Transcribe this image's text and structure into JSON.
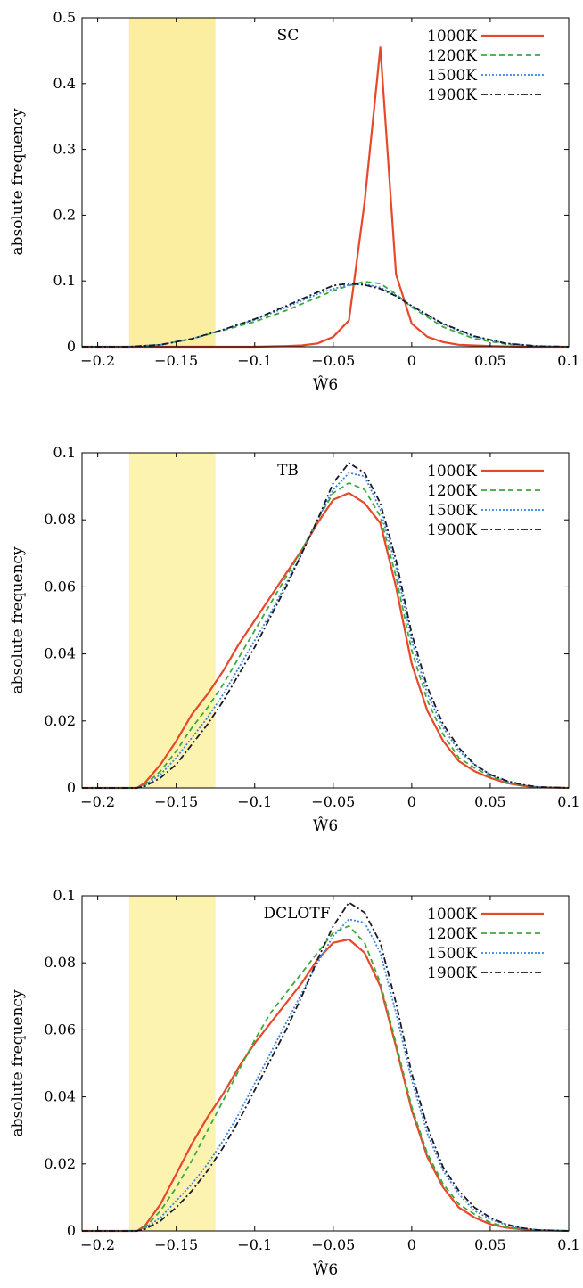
{
  "chart_data": [
    {
      "type": "line",
      "title": "SC",
      "xlabel": "Ŵ6",
      "ylabel": "absolute frequency",
      "xlim": [
        -0.21,
        0.1
      ],
      "ylim": [
        0,
        0.5
      ],
      "xticks": [
        -0.2,
        -0.15,
        -0.1,
        -0.05,
        0,
        0.05,
        0.1
      ],
      "xtick_labels": [
        "−0.2",
        "−0.15",
        "−0.1",
        "−0.05",
        "0",
        "0.05",
        "0.1"
      ],
      "yticks": [
        0,
        0.1,
        0.2,
        0.3,
        0.4,
        0.5
      ],
      "ytick_labels": [
        "0",
        "0.1",
        "0.2",
        "0.3",
        "0.4",
        "0.5"
      ],
      "highlight_band": {
        "x0": -0.18,
        "x1": -0.125,
        "color": "#fbeea0"
      },
      "legend_position": "top-right",
      "grid": false,
      "series": [
        {
          "name": "1000K",
          "color": "#e8482a",
          "dash": "",
          "x": [
            -0.21,
            -0.15,
            -0.1,
            -0.08,
            -0.07,
            -0.06,
            -0.05,
            -0.04,
            -0.03,
            -0.02,
            -0.01,
            0.0,
            0.01,
            0.02,
            0.03,
            0.05,
            0.07,
            0.1
          ],
          "y": [
            0,
            0,
            0,
            0.001,
            0.002,
            0.005,
            0.015,
            0.04,
            0.22,
            0.455,
            0.11,
            0.035,
            0.015,
            0.007,
            0.003,
            0.001,
            0,
            0
          ]
        },
        {
          "name": "1200K",
          "color": "#3caa3c",
          "dash": "6,4",
          "x": [
            -0.21,
            -0.18,
            -0.16,
            -0.14,
            -0.12,
            -0.1,
            -0.08,
            -0.06,
            -0.05,
            -0.04,
            -0.03,
            -0.02,
            -0.01,
            0.0,
            0.02,
            0.04,
            0.06,
            0.08,
            0.1
          ],
          "y": [
            0,
            0,
            0.003,
            0.012,
            0.025,
            0.038,
            0.055,
            0.075,
            0.085,
            0.093,
            0.099,
            0.096,
            0.08,
            0.06,
            0.03,
            0.012,
            0.004,
            0.001,
            0
          ]
        },
        {
          "name": "1500K",
          "color": "#3b82d9",
          "dash": "2,2",
          "x": [
            -0.21,
            -0.18,
            -0.16,
            -0.14,
            -0.12,
            -0.1,
            -0.08,
            -0.06,
            -0.05,
            -0.04,
            -0.03,
            -0.02,
            -0.01,
            0.0,
            0.02,
            0.04,
            0.06,
            0.08,
            0.1
          ],
          "y": [
            0,
            0,
            0.003,
            0.012,
            0.026,
            0.041,
            0.06,
            0.08,
            0.088,
            0.094,
            0.095,
            0.09,
            0.078,
            0.062,
            0.034,
            0.015,
            0.005,
            0.001,
            0
          ]
        },
        {
          "name": "1900K",
          "color": "#1a1a2e",
          "dash": "7,3,2,3",
          "x": [
            -0.21,
            -0.18,
            -0.16,
            -0.14,
            -0.12,
            -0.1,
            -0.08,
            -0.06,
            -0.05,
            -0.04,
            -0.03,
            -0.02,
            -0.01,
            0.0,
            0.02,
            0.04,
            0.06,
            0.08,
            0.1
          ],
          "y": [
            0,
            0,
            0.003,
            0.012,
            0.026,
            0.042,
            0.062,
            0.083,
            0.093,
            0.096,
            0.094,
            0.088,
            0.077,
            0.062,
            0.035,
            0.016,
            0.005,
            0.001,
            0
          ]
        }
      ]
    },
    {
      "type": "line",
      "title": "TB",
      "xlabel": "Ŵ6",
      "ylabel": "absolute frequency",
      "xlim": [
        -0.21,
        0.1
      ],
      "ylim": [
        0,
        0.1
      ],
      "xticks": [
        -0.2,
        -0.15,
        -0.1,
        -0.05,
        0,
        0.05,
        0.1
      ],
      "xtick_labels": [
        "−0.2",
        "−0.15",
        "−0.1",
        "−0.05",
        "0",
        "0.05",
        "0.1"
      ],
      "yticks": [
        0,
        0.02,
        0.04,
        0.06,
        0.08,
        0.1
      ],
      "ytick_labels": [
        "0",
        "0.02",
        "0.04",
        "0.06",
        "0.08",
        "0.1"
      ],
      "highlight_band": {
        "x0": -0.18,
        "x1": -0.125,
        "color": "#fdf3b0"
      },
      "legend_position": "top-right",
      "grid": false,
      "series": [
        {
          "name": "1000K",
          "color": "#e8482a",
          "dash": "",
          "x": [
            -0.21,
            -0.175,
            -0.17,
            -0.16,
            -0.15,
            -0.14,
            -0.13,
            -0.12,
            -0.11,
            -0.1,
            -0.09,
            -0.08,
            -0.07,
            -0.06,
            -0.05,
            -0.04,
            -0.03,
            -0.02,
            -0.01,
            0.0,
            0.01,
            0.02,
            0.03,
            0.04,
            0.05,
            0.06,
            0.07,
            0.08,
            0.1
          ],
          "y": [
            0,
            0,
            0.0015,
            0.007,
            0.014,
            0.022,
            0.028,
            0.035,
            0.043,
            0.05,
            0.057,
            0.064,
            0.071,
            0.079,
            0.086,
            0.088,
            0.085,
            0.079,
            0.06,
            0.037,
            0.023,
            0.014,
            0.008,
            0.005,
            0.003,
            0.0015,
            0.0007,
            0.0002,
            0
          ]
        },
        {
          "name": "1200K",
          "color": "#3caa3c",
          "dash": "6,4",
          "x": [
            -0.21,
            -0.175,
            -0.17,
            -0.16,
            -0.15,
            -0.14,
            -0.13,
            -0.12,
            -0.11,
            -0.1,
            -0.09,
            -0.08,
            -0.07,
            -0.06,
            -0.05,
            -0.04,
            -0.03,
            -0.02,
            -0.01,
            0.0,
            0.01,
            0.02,
            0.03,
            0.04,
            0.05,
            0.06,
            0.07,
            0.08,
            0.1
          ],
          "y": [
            0,
            0,
            0.001,
            0.005,
            0.011,
            0.018,
            0.024,
            0.031,
            0.039,
            0.047,
            0.055,
            0.063,
            0.071,
            0.08,
            0.088,
            0.091,
            0.089,
            0.081,
            0.063,
            0.041,
            0.026,
            0.016,
            0.009,
            0.006,
            0.0035,
            0.0018,
            0.0008,
            0.0002,
            0
          ]
        },
        {
          "name": "1500K",
          "color": "#3b82d9",
          "dash": "2,2",
          "x": [
            -0.21,
            -0.175,
            -0.17,
            -0.16,
            -0.15,
            -0.14,
            -0.13,
            -0.12,
            -0.11,
            -0.1,
            -0.09,
            -0.08,
            -0.07,
            -0.06,
            -0.05,
            -0.04,
            -0.03,
            -0.02,
            -0.01,
            0.0,
            0.01,
            0.02,
            0.03,
            0.04,
            0.05,
            0.06,
            0.07,
            0.08,
            0.1
          ],
          "y": [
            0,
            0,
            0.0008,
            0.004,
            0.009,
            0.015,
            0.021,
            0.028,
            0.036,
            0.044,
            0.052,
            0.061,
            0.07,
            0.08,
            0.089,
            0.094,
            0.093,
            0.083,
            0.066,
            0.044,
            0.028,
            0.018,
            0.011,
            0.007,
            0.004,
            0.002,
            0.0009,
            0.0003,
            0
          ]
        },
        {
          "name": "1900K",
          "color": "#1a1a2e",
          "dash": "7,3,2,3",
          "x": [
            -0.21,
            -0.175,
            -0.17,
            -0.16,
            -0.15,
            -0.14,
            -0.13,
            -0.12,
            -0.11,
            -0.1,
            -0.09,
            -0.08,
            -0.07,
            -0.06,
            -0.05,
            -0.04,
            -0.03,
            -0.02,
            -0.01,
            0.0,
            0.01,
            0.02,
            0.03,
            0.04,
            0.05,
            0.06,
            0.07,
            0.08,
            0.1
          ],
          "y": [
            0,
            0,
            0.0005,
            0.003,
            0.007,
            0.013,
            0.019,
            0.026,
            0.034,
            0.042,
            0.051,
            0.06,
            0.07,
            0.08,
            0.091,
            0.097,
            0.094,
            0.085,
            0.068,
            0.046,
            0.03,
            0.019,
            0.012,
            0.007,
            0.004,
            0.0022,
            0.001,
            0.0003,
            0
          ]
        }
      ]
    },
    {
      "type": "line",
      "title": "DCLOTF",
      "xlabel": "Ŵ6",
      "ylabel": "absolute frequency",
      "xlim": [
        -0.21,
        0.1
      ],
      "ylim": [
        0,
        0.1
      ],
      "xticks": [
        -0.2,
        -0.15,
        -0.1,
        -0.05,
        0,
        0.05,
        0.1
      ],
      "xtick_labels": [
        "−0.2",
        "−0.15",
        "−0.1",
        "−0.05",
        "0",
        "0.05",
        "0.1"
      ],
      "yticks": [
        0,
        0.02,
        0.04,
        0.06,
        0.08,
        0.1
      ],
      "ytick_labels": [
        "0",
        "0.02",
        "0.04",
        "0.06",
        "0.08",
        "0.1"
      ],
      "highlight_band": {
        "x0": -0.18,
        "x1": -0.125,
        "color": "#fdf3b0"
      },
      "legend_position": "top-right",
      "grid": false,
      "series": [
        {
          "name": "1000K",
          "color": "#e8482a",
          "dash": "",
          "x": [
            -0.21,
            -0.175,
            -0.17,
            -0.16,
            -0.15,
            -0.14,
            -0.13,
            -0.12,
            -0.11,
            -0.1,
            -0.09,
            -0.08,
            -0.07,
            -0.06,
            -0.05,
            -0.04,
            -0.03,
            -0.02,
            -0.01,
            0.0,
            0.01,
            0.02,
            0.03,
            0.04,
            0.05,
            0.06,
            0.07,
            0.08,
            0.1
          ],
          "y": [
            0,
            0,
            0.0015,
            0.008,
            0.017,
            0.026,
            0.034,
            0.041,
            0.049,
            0.056,
            0.062,
            0.068,
            0.074,
            0.081,
            0.086,
            0.087,
            0.083,
            0.073,
            0.055,
            0.036,
            0.022,
            0.013,
            0.007,
            0.004,
            0.002,
            0.001,
            0.0005,
            0.0002,
            0
          ]
        },
        {
          "name": "1200K",
          "color": "#3caa3c",
          "dash": "6,4",
          "x": [
            -0.21,
            -0.175,
            -0.17,
            -0.16,
            -0.15,
            -0.14,
            -0.13,
            -0.12,
            -0.11,
            -0.1,
            -0.09,
            -0.08,
            -0.07,
            -0.06,
            -0.05,
            -0.04,
            -0.03,
            -0.02,
            -0.01,
            0.0,
            0.01,
            0.02,
            0.03,
            0.04,
            0.05,
            0.06,
            0.07,
            0.08,
            0.1
          ],
          "y": [
            0,
            0,
            0.001,
            0.006,
            0.013,
            0.021,
            0.03,
            0.039,
            0.048,
            0.057,
            0.065,
            0.071,
            0.077,
            0.083,
            0.089,
            0.091,
            0.086,
            0.074,
            0.056,
            0.037,
            0.023,
            0.014,
            0.008,
            0.005,
            0.0025,
            0.0012,
            0.0005,
            0.0002,
            0
          ]
        },
        {
          "name": "1500K",
          "color": "#3b82d9",
          "dash": "2,2",
          "x": [
            -0.21,
            -0.175,
            -0.17,
            -0.16,
            -0.15,
            -0.14,
            -0.13,
            -0.12,
            -0.11,
            -0.1,
            -0.09,
            -0.08,
            -0.07,
            -0.06,
            -0.05,
            -0.04,
            -0.03,
            -0.02,
            -0.01,
            0.0,
            0.01,
            0.02,
            0.03,
            0.04,
            0.05,
            0.06,
            0.07,
            0.08,
            0.1
          ],
          "y": [
            0,
            0,
            0.0008,
            0.004,
            0.009,
            0.014,
            0.02,
            0.027,
            0.035,
            0.044,
            0.053,
            0.062,
            0.071,
            0.08,
            0.088,
            0.093,
            0.092,
            0.083,
            0.065,
            0.045,
            0.029,
            0.018,
            0.011,
            0.006,
            0.0035,
            0.0018,
            0.0008,
            0.0003,
            0
          ]
        },
        {
          "name": "1900K",
          "color": "#1a1a2e",
          "dash": "7,3,2,3",
          "x": [
            -0.21,
            -0.175,
            -0.17,
            -0.16,
            -0.15,
            -0.14,
            -0.13,
            -0.12,
            -0.11,
            -0.1,
            -0.09,
            -0.08,
            -0.07,
            -0.06,
            -0.05,
            -0.04,
            -0.03,
            -0.02,
            -0.01,
            0.0,
            0.01,
            0.02,
            0.03,
            0.04,
            0.05,
            0.06,
            0.07,
            0.08,
            0.1
          ],
          "y": [
            0,
            0,
            0.0005,
            0.003,
            0.007,
            0.012,
            0.018,
            0.025,
            0.033,
            0.042,
            0.051,
            0.06,
            0.07,
            0.081,
            0.091,
            0.098,
            0.095,
            0.086,
            0.068,
            0.047,
            0.031,
            0.019,
            0.012,
            0.007,
            0.004,
            0.002,
            0.0009,
            0.0003,
            0
          ]
        }
      ]
    }
  ]
}
